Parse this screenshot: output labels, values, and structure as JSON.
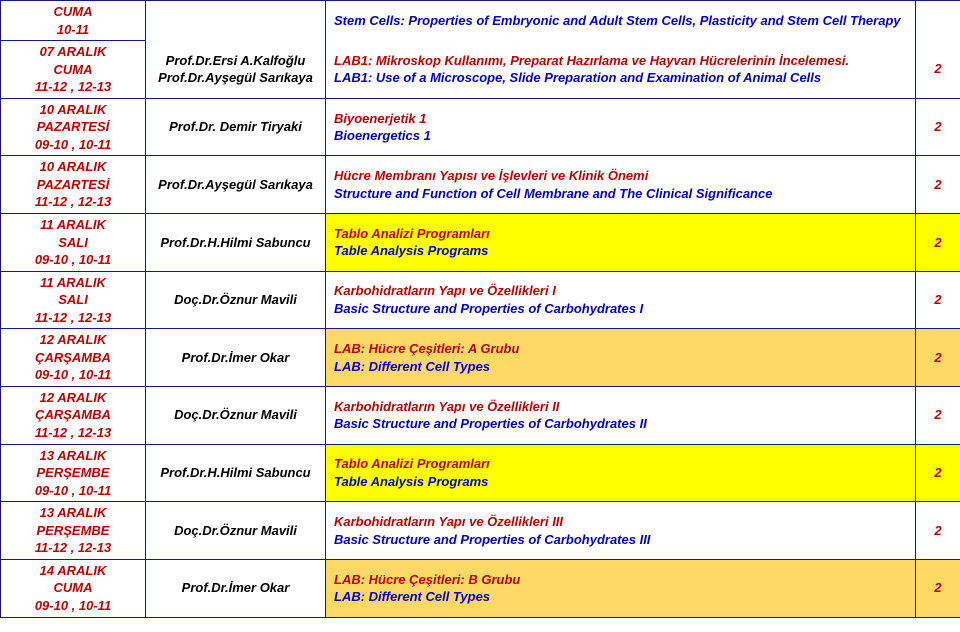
{
  "colors": {
    "border": "#1a1a7a",
    "trText": "#c00000",
    "enText": "#0000cc",
    "bgYellow": "#ffff00",
    "bgLtOrange": "#ffd966"
  },
  "rows": [
    {
      "date": {
        "l1": "CUMA",
        "l2": "10-11"
      },
      "inst": "",
      "topic": {
        "tr": "",
        "en": "Stem Cells: Properties of Embryonic and Adult Stem Cells, Plasticity and Stem Cell Therapy"
      },
      "hrs": "",
      "bg": "",
      "dateRowspan": 1,
      "instRowspan": 1,
      "hrsRowspan": 1,
      "mergeDown": true
    },
    {
      "date": {
        "l1": "07 ARALIK",
        "l2": "CUMA",
        "l3": "11-12 , 12-13"
      },
      "inst": "Prof.Dr.Ersi A.Kalfoğlu\nProf.Dr.Ayşegül Sarıkaya",
      "topic": {
        "tr": "LAB1: Mikroskop Kullanımı, Preparat Hazırlama ve Hayvan Hücrelerinin İncelemesi.",
        "en": "LAB1: Use of a Microscope, Slide Preparation and Examination of Animal Cells"
      },
      "hrs": "2",
      "bg": ""
    },
    {
      "date": {
        "l1": "10 ARALIK",
        "l2": "PAZARTESİ",
        "l3": "09-10 , 10-11"
      },
      "inst": "Prof.Dr. Demir Tiryaki",
      "topic": {
        "tr": "Biyoenerjetik 1",
        "en": "Bioenergetics 1"
      },
      "hrs": "2",
      "bg": ""
    },
    {
      "date": {
        "l1": "10 ARALIK",
        "l2": "PAZARTESİ",
        "l3": "11-12 , 12-13"
      },
      "inst": "Prof.Dr.Ayşegül Sarıkaya",
      "topic": {
        "tr": "Hücre Membranı Yapısı ve İşlevleri ve Klinik Önemi",
        "en": "Structure and Function of Cell Membrane and The Clinical Significance"
      },
      "hrs": "2",
      "bg": ""
    },
    {
      "date": {
        "l1": "11 ARALIK",
        "l2": "SALI",
        "l3": "09-10 , 10-11"
      },
      "inst": "Prof.Dr.H.Hilmi Sabuncu",
      "topic": {
        "tr": "Tablo Analizi Programları",
        "en": "Table Analysis Programs"
      },
      "hrs": "2",
      "bg": "bg-yellow"
    },
    {
      "date": {
        "l1": "11 ARALIK",
        "l2": "SALI",
        "l3": "11-12 , 12-13"
      },
      "inst": "Doç.Dr.Öznur Mavili",
      "topic": {
        "tr": "Karbohidratların Yapı ve Özellikleri I",
        "en": "Basic Structure and Properties of Carbohydrates  I"
      },
      "hrs": "2",
      "bg": ""
    },
    {
      "date": {
        "l1": "12 ARALIK",
        "l2": "ÇARŞAMBA",
        "l3": "09-10 , 10-11"
      },
      "inst": "Prof.Dr.İmer Okar",
      "topic": {
        "tr": "LAB: Hücre Çeşitleri:  A Grubu",
        "en": "LAB: Different Cell Types"
      },
      "hrs": "2",
      "bg": "bg-ltoran"
    },
    {
      "date": {
        "l1": "12 ARALIK",
        "l2": "ÇARŞAMBA",
        "l3": "11-12 , 12-13"
      },
      "inst": "Doç.Dr.Öznur Mavili",
      "topic": {
        "tr": "Karbohidratların Yapı ve Özellikleri II",
        "en": "Basic Structure and Properties of Carbohydrates  II"
      },
      "hrs": "2",
      "bg": ""
    },
    {
      "date": {
        "l1": "13 ARALIK",
        "l2": "PERŞEMBE",
        "l3": "09-10 , 10-11"
      },
      "inst": "Prof.Dr.H.Hilmi Sabuncu",
      "topic": {
        "tr": "Tablo Analizi Programları",
        "en": "Table Analysis Programs"
      },
      "hrs": "2",
      "bg": "bg-yellow"
    },
    {
      "date": {
        "l1": "13 ARALIK",
        "l2": "PERŞEMBE",
        "l3": "11-12 , 12-13"
      },
      "inst": "Doç.Dr.Öznur Mavili",
      "topic": {
        "tr": "Karbohidratların Yapı ve Özellikleri III",
        "en": "Basic Structure and Properties of Carbohydrates  III"
      },
      "hrs": "2",
      "bg": ""
    },
    {
      "date": {
        "l1": "14 ARALIK",
        "l2": "CUMA",
        "l3": "09-10 , 10-11"
      },
      "inst": "Prof.Dr.İmer Okar",
      "topic": {
        "tr": "LAB: Hücre Çeşitleri: B Grubu",
        "en": "LAB: Different Cell Types"
      },
      "hrs": "2",
      "bg": "bg-ltoran"
    }
  ]
}
